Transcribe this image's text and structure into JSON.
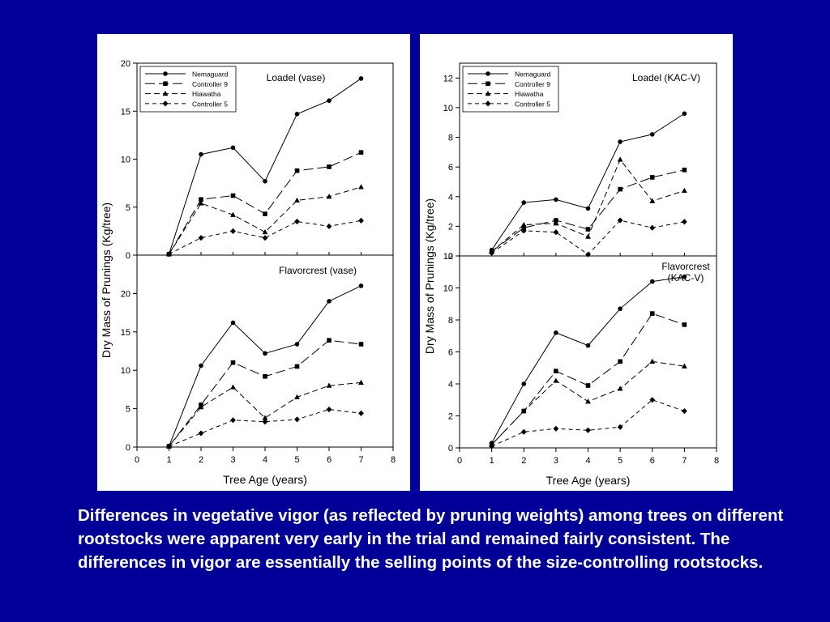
{
  "caption": "Differences in vegetative vigor (as reflected by pruning weights) among trees on different rootstocks were apparent very early in the trial and remained fairly consistent.  The differences in vigor are essentially the selling points of the size-controlling rootstocks.",
  "chart_data": [
    {
      "type": "line",
      "title": "Loadel (vase)",
      "ylabel": "Dry Mass of Prunings (Kg/tree)",
      "xlabel": "",
      "xlim": [
        0,
        8
      ],
      "ylim": [
        0,
        20
      ],
      "yticks": [
        0,
        5,
        10,
        15,
        20
      ],
      "x": [
        1,
        2,
        3,
        4,
        5,
        6,
        7
      ],
      "legend": "top-left",
      "series": [
        {
          "name": "Nemaguard",
          "marker": "circle",
          "values": [
            0.1,
            10.5,
            11.2,
            7.7,
            14.7,
            16.1,
            18.4
          ]
        },
        {
          "name": "Controller 9",
          "marker": "square",
          "values": [
            0.1,
            5.8,
            6.2,
            4.3,
            8.8,
            9.2,
            10.7
          ]
        },
        {
          "name": "Hiawatha",
          "marker": "triangle",
          "values": [
            0.1,
            5.4,
            4.2,
            2.4,
            5.7,
            6.1,
            7.1
          ]
        },
        {
          "name": "Controller 5",
          "marker": "diamond",
          "values": [
            0.1,
            1.8,
            2.5,
            1.8,
            3.5,
            3.0,
            3.6
          ]
        }
      ]
    },
    {
      "type": "line",
      "title": "Flavorcrest (vase)",
      "ylabel": "",
      "xlabel": "Tree Age (years)",
      "xlim": [
        0,
        8
      ],
      "ylim": [
        0,
        25
      ],
      "yticks": [
        0,
        5,
        10,
        15,
        20
      ],
      "xticks": [
        0,
        1,
        2,
        3,
        4,
        5,
        6,
        7,
        8
      ],
      "x": [
        1,
        2,
        3,
        4,
        5,
        6,
        7
      ],
      "series": [
        {
          "name": "Nemaguard",
          "marker": "circle",
          "values": [
            0.1,
            10.6,
            16.2,
            12.2,
            13.4,
            19.0,
            21.0
          ]
        },
        {
          "name": "Controller 9",
          "marker": "square",
          "values": [
            0.1,
            5.5,
            11.0,
            9.2,
            10.5,
            13.9,
            13.4
          ]
        },
        {
          "name": "Hiawatha",
          "marker": "triangle",
          "values": [
            0.1,
            5.2,
            7.8,
            3.8,
            6.5,
            8.0,
            8.4
          ]
        },
        {
          "name": "Controller 5",
          "marker": "diamond",
          "values": [
            0.1,
            1.8,
            3.5,
            3.3,
            3.6,
            4.9,
            4.4
          ]
        }
      ]
    },
    {
      "type": "line",
      "title": "Loadel (KAC-V)",
      "ylabel": "Dry Mass of Prunings (Kg/tree)",
      "xlabel": "",
      "xlim": [
        0,
        8
      ],
      "ylim": [
        0,
        13
      ],
      "yticks": [
        0,
        2,
        4,
        6,
        8,
        10,
        12
      ],
      "x": [
        1,
        2,
        3,
        4,
        5,
        6,
        7
      ],
      "legend": "top-left",
      "series": [
        {
          "name": "Nemaguard",
          "marker": "circle",
          "values": [
            0.4,
            3.6,
            3.8,
            3.2,
            7.7,
            8.2,
            9.6
          ]
        },
        {
          "name": "Controller 9",
          "marker": "square",
          "values": [
            0.3,
            1.9,
            2.4,
            1.8,
            4.5,
            5.3,
            5.8
          ]
        },
        {
          "name": "Hiawatha",
          "marker": "triangle",
          "values": [
            0.3,
            2.1,
            2.2,
            1.3,
            6.5,
            3.7,
            4.4
          ]
        },
        {
          "name": "Controller 5",
          "marker": "diamond",
          "values": [
            0.2,
            1.7,
            1.6,
            0.1,
            2.4,
            1.9,
            2.3
          ]
        }
      ]
    },
    {
      "type": "line",
      "title": "Flavorcrest\n(KAC-V)",
      "ylabel": "",
      "xlabel": "Tree Age (years)",
      "xlim": [
        0,
        8
      ],
      "ylim": [
        0,
        12
      ],
      "yticks": [
        0,
        2,
        4,
        6,
        8,
        10,
        12
      ],
      "xticks": [
        0,
        1,
        2,
        3,
        4,
        5,
        6,
        7,
        8
      ],
      "x": [
        1,
        2,
        3,
        4,
        5,
        6,
        7
      ],
      "series": [
        {
          "name": "Nemaguard",
          "marker": "circle",
          "values": [
            0.3,
            4.0,
            7.2,
            6.4,
            8.7,
            10.4,
            10.7
          ]
        },
        {
          "name": "Controller 9",
          "marker": "square",
          "values": [
            0.2,
            2.3,
            4.8,
            3.9,
            5.4,
            8.4,
            7.7
          ]
        },
        {
          "name": "Hiawatha",
          "marker": "triangle",
          "values": [
            0.2,
            2.3,
            4.2,
            2.9,
            3.7,
            5.4,
            5.1
          ]
        },
        {
          "name": "Controller 5",
          "marker": "diamond",
          "values": [
            0.1,
            1.0,
            1.2,
            1.1,
            1.3,
            3.0,
            2.3
          ]
        }
      ]
    }
  ]
}
